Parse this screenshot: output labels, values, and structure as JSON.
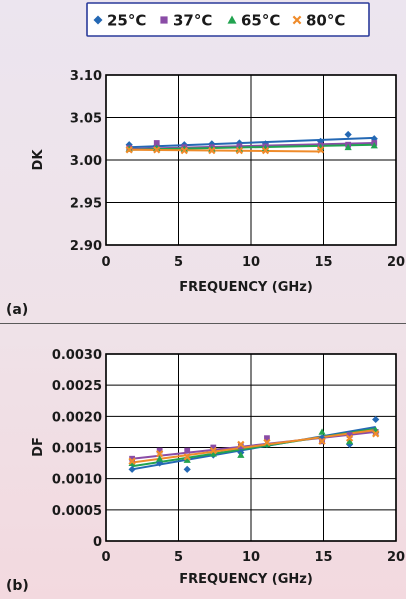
{
  "legend": {
    "entries": [
      {
        "label": "25°C",
        "color": "#2468b4",
        "marker": "diamond"
      },
      {
        "label": "37°C",
        "color": "#8a4ca6",
        "marker": "square"
      },
      {
        "label": "65°C",
        "color": "#22a350",
        "marker": "triangle"
      },
      {
        "label": "80°C",
        "color": "#ef8b2a",
        "marker": "x"
      }
    ]
  },
  "chart_data": [
    {
      "type": "scatter",
      "panel_label": "(a)",
      "xlabel": "FREQUENCY (GHz)",
      "ylabel": "DK",
      "xlim": [
        0,
        20
      ],
      "ylim": [
        2.9,
        3.1
      ],
      "xticks": [
        "0",
        "5",
        "10",
        "15",
        "20"
      ],
      "yticks": [
        "2.90",
        "2.95",
        "3.00",
        "3.05",
        "3.10"
      ],
      "grid": true,
      "series": [
        {
          "name": "25°C",
          "color": "#2468b4",
          "x": [
            1.6,
            3.5,
            5.4,
            7.3,
            9.2,
            11.0,
            14.8,
            16.7,
            18.5
          ],
          "y": [
            3.018,
            3.017,
            3.018,
            3.019,
            3.02,
            3.019,
            3.022,
            3.03,
            3.025
          ],
          "fit": [
            3.015,
            3.026
          ]
        },
        {
          "name": "37°C",
          "color": "#8a4ca6",
          "x": [
            1.6,
            3.5,
            5.4,
            7.3,
            9.2,
            11.0,
            14.8,
            16.7,
            18.5
          ],
          "y": [
            3.014,
            3.02,
            3.015,
            3.015,
            3.016,
            3.016,
            3.017,
            3.018,
            3.02
          ],
          "fit": [
            3.013,
            3.02
          ]
        },
        {
          "name": "65°C",
          "color": "#22a350",
          "x": [
            1.6,
            3.5,
            5.4,
            7.3,
            9.2,
            11.0,
            14.8,
            16.7,
            18.5
          ],
          "y": [
            3.013,
            3.014,
            3.013,
            3.013,
            3.013,
            3.014,
            3.015,
            3.015,
            3.017
          ],
          "fit": [
            3.012,
            3.018
          ]
        },
        {
          "name": "80°C",
          "color": "#ef8b2a",
          "x": [
            1.6,
            3.5,
            5.4,
            7.3,
            9.2,
            11.0,
            14.8
          ],
          "y": [
            3.012,
            3.012,
            3.011,
            3.011,
            3.011,
            3.011,
            3.012
          ],
          "fit": [
            3.012,
            3.01
          ],
          "fit_xrange": [
            1.6,
            14.8
          ]
        }
      ]
    },
    {
      "type": "scatter",
      "panel_label": "(b)",
      "xlabel": "FREQUENCY (GHz)",
      "ylabel": "DF",
      "xlim": [
        0,
        20
      ],
      "ylim": [
        0,
        0.003
      ],
      "xticks": [
        "0",
        "5",
        "10",
        "15",
        "20"
      ],
      "yticks": [
        "0",
        "0.0005",
        "0.0010",
        "0.0015",
        "0.0020",
        "0.0025",
        "0.0030"
      ],
      "grid": true,
      "series": [
        {
          "name": "25°C",
          "color": "#2468b4",
          "x": [
            1.8,
            3.7,
            5.6,
            7.4,
            9.3,
            11.1,
            14.9,
            16.8,
            18.6
          ],
          "y": [
            0.00115,
            0.00125,
            0.00115,
            0.00138,
            0.00142,
            0.00155,
            0.00165,
            0.00155,
            0.00195
          ],
          "fit": [
            0.00115,
            0.00183
          ]
        },
        {
          "name": "37°C",
          "color": "#8a4ca6",
          "x": [
            1.8,
            3.7,
            5.6,
            7.4,
            9.3,
            11.1,
            14.9,
            16.8,
            18.6
          ],
          "y": [
            0.00132,
            0.00145,
            0.00145,
            0.0015,
            0.00152,
            0.00165,
            0.0016,
            0.0017,
            0.00175
          ],
          "fit": [
            0.00132,
            0.00175
          ]
        },
        {
          "name": "65°C",
          "color": "#22a350",
          "x": [
            1.8,
            3.7,
            5.6,
            7.4,
            9.3,
            11.1,
            14.9,
            16.8,
            18.6
          ],
          "y": [
            0.00125,
            0.00132,
            0.0013,
            0.0014,
            0.00138,
            0.00155,
            0.00175,
            0.0016,
            0.00178
          ],
          "fit": [
            0.0012,
            0.0018
          ]
        },
        {
          "name": "80°C",
          "color": "#ef8b2a",
          "x": [
            1.8,
            3.7,
            5.6,
            7.4,
            9.3,
            11.1,
            14.9,
            16.8,
            18.6
          ],
          "y": [
            0.00128,
            0.0014,
            0.00135,
            0.00145,
            0.00155,
            0.00158,
            0.0016,
            0.00165,
            0.00172
          ],
          "fit": [
            0.00126,
            0.00178
          ]
        }
      ]
    }
  ]
}
